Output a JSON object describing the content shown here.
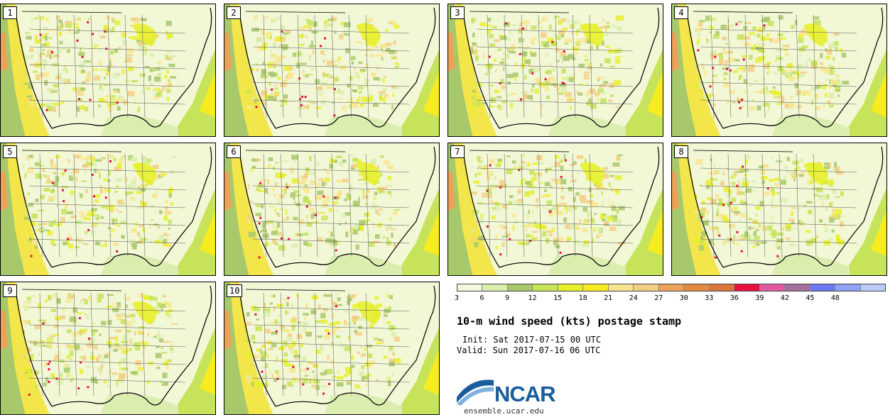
{
  "panels": [
    {
      "label": "1"
    },
    {
      "label": "2"
    },
    {
      "label": "3"
    },
    {
      "label": "4"
    },
    {
      "label": "5"
    },
    {
      "label": "6"
    },
    {
      "label": "7"
    },
    {
      "label": "8"
    },
    {
      "label": "9"
    },
    {
      "label": "10"
    }
  ],
  "legend": {
    "ticks": [
      "3",
      "6",
      "9",
      "12",
      "15",
      "18",
      "21",
      "24",
      "27",
      "30",
      "33",
      "36",
      "39",
      "42",
      "45",
      "48"
    ],
    "colors": [
      "#f4f8dc",
      "#dbeeb0",
      "#a8c86c",
      "#c6e35a",
      "#e7f02a",
      "#f7ec1f",
      "#f9e58e",
      "#f3cf85",
      "#eca158",
      "#e48a3e",
      "#d9763a",
      "#e8103c",
      "#e45aa0",
      "#a3709e",
      "#6a79f1",
      "#8ea2f6",
      "#bccbf6"
    ]
  },
  "title": "10-m wind speed (kts) postage stamp",
  "init": "Init: Sat 2017-07-15 00 UTC",
  "valid": "Valid: Sun 2017-07-16 06 UTC",
  "logo": {
    "name": "NCAR",
    "url": "ensemble.ucar.edu",
    "color": "#1b5d9c"
  }
}
